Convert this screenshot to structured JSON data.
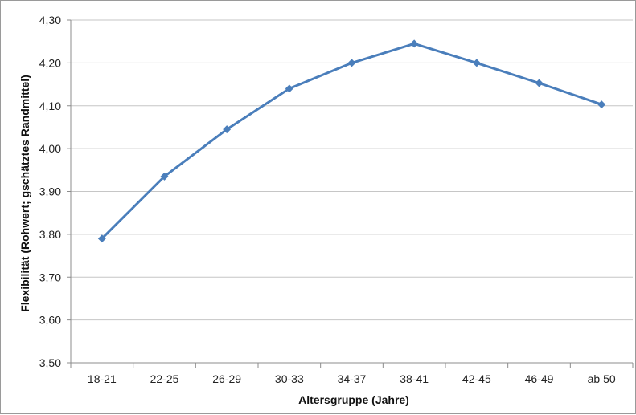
{
  "chart_data": {
    "type": "line",
    "title": "",
    "xlabel": "Altersgruppe (Jahre)",
    "ylabel": "Flexibilität (Rohwert; gschätztes Randmittel)",
    "categories": [
      "18-21",
      "22-25",
      "26-29",
      "30-33",
      "34-37",
      "38-41",
      "42-45",
      "46-49",
      "ab 50"
    ],
    "series": [
      {
        "values": [
          3.79,
          3.935,
          4.045,
          4.14,
          4.2,
          4.245,
          4.2,
          4.153,
          4.103
        ]
      }
    ],
    "ylim": [
      3.5,
      4.3
    ],
    "ytick_step": 0.1,
    "ytick_labels": [
      "3,50",
      "3,60",
      "3,70",
      "3,80",
      "3,90",
      "4,00",
      "4,10",
      "4,20",
      "4,30"
    ],
    "grid": true,
    "legend": "none",
    "marker": "diamond",
    "colors": {
      "line": "#4a7ebb",
      "grid": "#c6c6c6",
      "axis": "#8c8c8c"
    }
  }
}
